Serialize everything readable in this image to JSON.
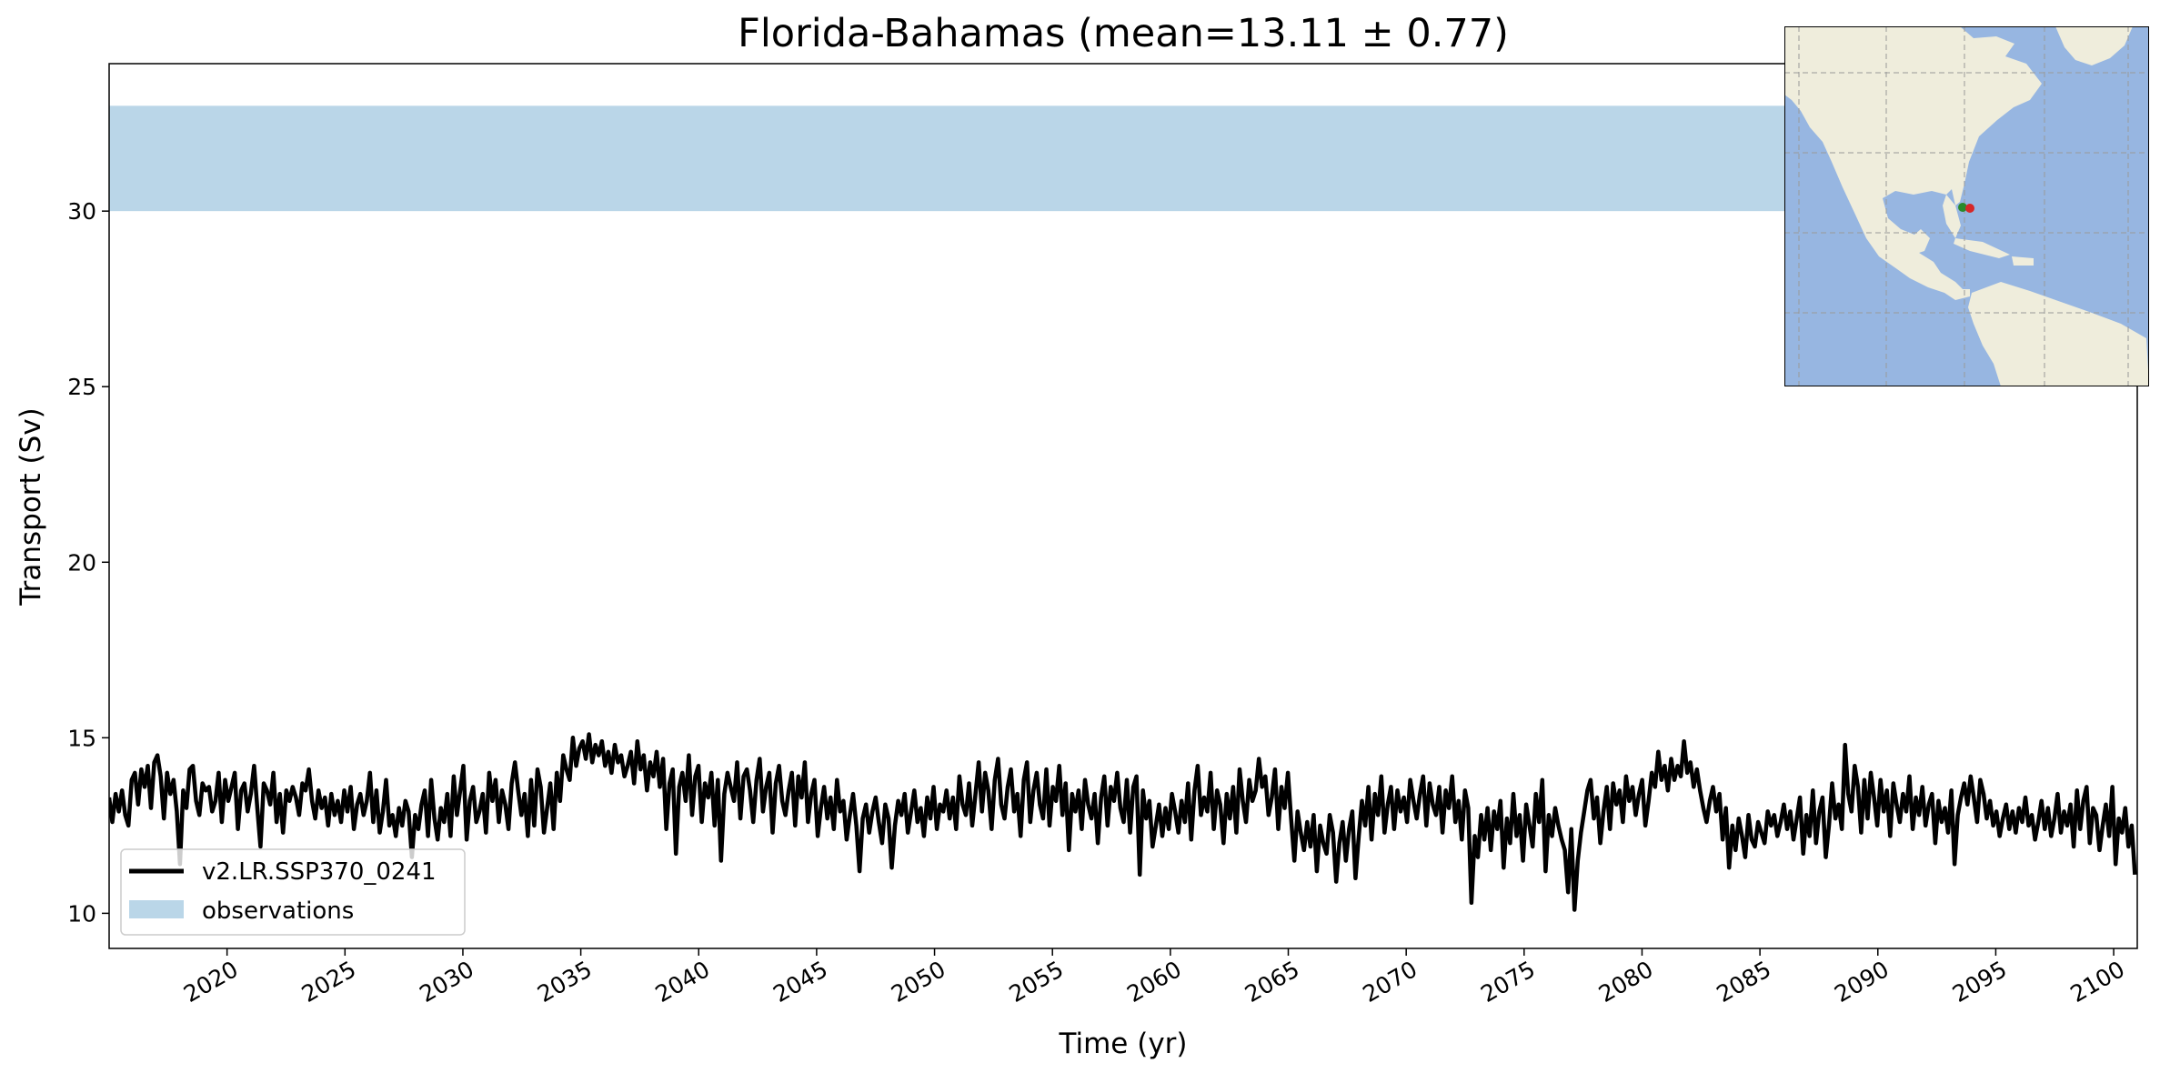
{
  "chart_data": {
    "type": "line",
    "title": "Florida-Bahamas (mean=13.11 ± 0.77)",
    "xlabel": "Time (yr)",
    "ylabel": "Transport (Sv)",
    "xlim": [
      2015,
      2101
    ],
    "ylim": [
      9,
      34.2
    ],
    "x_ticks": [
      2020,
      2025,
      2030,
      2035,
      2040,
      2045,
      2050,
      2055,
      2060,
      2065,
      2070,
      2075,
      2080,
      2085,
      2090,
      2095,
      2100
    ],
    "x_tick_labels": [
      "2020",
      "2025",
      "2030",
      "2035",
      "2040",
      "2045",
      "2050",
      "2055",
      "2060",
      "2065",
      "2070",
      "2075",
      "2080",
      "2085",
      "2090",
      "2095",
      "2100"
    ],
    "y_ticks": [
      10,
      15,
      20,
      25,
      30
    ],
    "y_tick_labels": [
      "10",
      "15",
      "20",
      "25",
      "30"
    ],
    "observation_band": {
      "name": "observations",
      "ymin": 30,
      "ymax": 33,
      "color": "#bad6e8"
    },
    "grid": false,
    "legend_position": "lower-left",
    "series": [
      {
        "name": "v2.LR.SSP370_0241",
        "color": "#000000",
        "x_start": 2015.0,
        "x_end": 2100.9,
        "values": [
          13.3,
          12.6,
          13.4,
          12.9,
          13.5,
          12.8,
          12.5,
          13.8,
          14.0,
          13.1,
          14.1,
          13.6,
          14.2,
          13.0,
          14.3,
          14.5,
          13.9,
          12.7,
          14.0,
          13.4,
          13.8,
          12.9,
          11.4,
          13.5,
          13.0,
          14.1,
          14.2,
          13.2,
          12.8,
          13.7,
          13.5,
          13.6,
          12.9,
          13.2,
          14.0,
          12.6,
          13.8,
          13.2,
          13.6,
          14.0,
          12.4,
          13.5,
          13.7,
          12.9,
          13.4,
          14.2,
          13.0,
          11.9,
          13.7,
          13.5,
          13.1,
          14.0,
          12.6,
          13.4,
          12.3,
          13.5,
          13.2,
          13.6,
          13.3,
          12.8,
          13.7,
          13.5,
          14.1,
          13.2,
          12.7,
          13.5,
          13.0,
          13.3,
          12.5,
          13.4,
          12.8,
          13.2,
          12.6,
          13.5,
          12.9,
          13.6,
          12.4,
          13.1,
          13.4,
          12.8,
          13.2,
          14.0,
          12.6,
          13.5,
          12.3,
          12.9,
          13.8,
          12.5,
          12.8,
          12.2,
          13.0,
          12.5,
          13.2,
          12.9,
          11.6,
          12.8,
          12.4,
          13.1,
          13.5,
          12.2,
          13.8,
          12.7,
          12.1,
          13.0,
          12.6,
          13.4,
          12.2,
          13.9,
          12.8,
          13.5,
          14.2,
          12.1,
          13.2,
          13.6,
          12.6,
          12.9,
          13.4,
          12.3,
          14.0,
          13.2,
          13.8,
          12.6,
          13.5,
          13.1,
          12.4,
          13.7,
          14.3,
          13.5,
          12.8,
          13.4,
          12.2,
          13.8,
          12.5,
          14.1,
          13.6,
          12.3,
          13.0,
          13.7,
          12.4,
          14.0,
          13.2,
          14.5,
          14.1,
          13.8,
          15.0,
          14.2,
          14.7,
          14.9,
          14.4,
          15.1,
          14.3,
          14.8,
          14.5,
          14.9,
          14.2,
          14.6,
          14.0,
          14.8,
          14.3,
          14.5,
          13.9,
          14.2,
          14.6,
          13.7,
          14.9,
          14.1,
          14.5,
          13.5,
          14.3,
          13.9,
          14.6,
          13.6,
          14.4,
          12.4,
          13.7,
          14.1,
          11.7,
          13.6,
          14.0,
          13.2,
          14.5,
          12.8,
          13.9,
          14.2,
          12.6,
          13.7,
          13.3,
          14.0,
          12.5,
          13.8,
          11.5,
          13.4,
          14.0,
          13.6,
          13.2,
          14.3,
          12.7,
          13.9,
          14.1,
          13.5,
          12.6,
          13.8,
          14.4,
          12.9,
          13.6,
          14.0,
          12.3,
          13.7,
          14.2,
          13.2,
          12.8,
          13.5,
          14.0,
          12.5,
          13.9,
          13.3,
          14.3,
          12.6,
          13.4,
          13.8,
          12.2,
          13.0,
          13.6,
          12.7,
          13.3,
          12.4,
          13.8,
          12.9,
          13.2,
          12.1,
          12.8,
          13.4,
          12.5,
          11.2,
          12.7,
          13.1,
          12.3,
          12.9,
          13.3,
          12.6,
          12.0,
          13.1,
          12.7,
          11.3,
          12.5,
          13.2,
          12.8,
          13.4,
          12.3,
          12.9,
          13.5,
          12.6,
          13.0,
          12.2,
          13.3,
          12.7,
          13.6,
          12.4,
          13.1,
          12.9,
          13.5,
          12.7,
          13.3,
          12.4,
          13.9,
          13.1,
          12.8,
          13.7,
          12.5,
          13.4,
          14.3,
          12.9,
          14.0,
          13.5,
          12.4,
          13.8,
          14.4,
          13.1,
          12.7,
          13.6,
          14.1,
          12.9,
          13.4,
          12.2,
          13.8,
          14.3,
          12.6,
          13.5,
          14.0,
          13.1,
          12.7,
          14.1,
          12.5,
          13.6,
          13.2,
          14.2,
          12.8,
          13.7,
          11.8,
          13.4,
          12.9,
          13.5,
          12.4,
          13.8,
          13.1,
          12.7,
          13.4,
          12.0,
          13.3,
          13.9,
          12.5,
          13.6,
          13.2,
          14.0,
          13.0,
          12.6,
          13.8,
          12.3,
          13.6,
          13.9,
          11.1,
          13.5,
          12.7,
          13.2,
          11.9,
          12.5,
          13.1,
          12.2,
          13.0,
          12.4,
          13.4,
          12.9,
          12.3,
          13.2,
          12.6,
          13.7,
          12.1,
          13.5,
          14.2,
          12.8,
          13.3,
          12.9,
          14.0,
          12.4,
          13.5,
          13.1,
          12.0,
          13.4,
          12.7,
          13.6,
          12.3,
          14.1,
          13.2,
          12.6,
          13.8,
          13.2,
          13.5,
          14.4,
          13.6,
          13.9,
          12.8,
          13.3,
          14.1,
          12.4,
          13.6,
          13.0,
          14.0,
          12.7,
          11.5,
          12.9,
          12.3,
          11.8,
          12.6,
          11.9,
          12.8,
          11.2,
          12.5,
          12.0,
          11.7,
          12.8,
          12.3,
          10.9,
          12.0,
          12.6,
          11.5,
          12.4,
          12.9,
          11.0,
          12.2,
          13.2,
          12.5,
          13.6,
          12.1,
          13.4,
          12.8,
          13.9,
          12.3,
          13.1,
          13.6,
          12.4,
          13.5,
          12.9,
          13.3,
          12.6,
          13.8,
          13.2,
          12.7,
          13.4,
          13.9,
          12.5,
          13.7,
          13.1,
          12.8,
          13.6,
          12.3,
          13.5,
          13.0,
          13.9,
          12.6,
          13.2,
          12.1,
          13.5,
          13.0,
          10.3,
          12.2,
          11.6,
          12.8,
          12.1,
          13.0,
          11.8,
          12.9,
          12.4,
          13.2,
          11.3,
          12.7,
          12.0,
          13.4,
          12.2,
          12.8,
          11.5,
          13.1,
          12.5,
          11.9,
          13.4,
          12.6,
          13.8,
          11.2,
          12.8,
          12.2,
          13.0,
          12.5,
          12.1,
          11.8,
          10.6,
          12.4,
          10.1,
          11.5,
          12.3,
          12.9,
          13.5,
          13.8,
          12.7,
          13.3,
          12.0,
          12.9,
          13.6,
          12.4,
          13.7,
          13.1,
          13.5,
          12.6,
          13.9,
          13.2,
          13.6,
          12.8,
          13.4,
          13.8,
          12.5,
          13.2,
          14.0,
          13.6,
          14.6,
          13.8,
          14.2,
          13.5,
          14.4,
          13.8,
          14.2,
          13.9,
          14.9,
          14.0,
          14.3,
          13.6,
          14.1,
          13.5,
          13.0,
          12.6,
          13.2,
          13.6,
          12.9,
          13.4,
          12.1,
          13.0,
          11.3,
          12.5,
          11.8,
          12.7,
          12.2,
          11.6,
          12.8,
          12.1,
          11.9,
          12.6,
          12.3,
          12.0,
          12.9,
          12.5,
          12.8,
          12.2,
          12.6,
          13.1,
          12.4,
          12.9,
          12.1,
          12.7,
          13.3,
          11.7,
          12.8,
          12.2,
          13.5,
          12.0,
          12.9,
          13.3,
          11.6,
          12.5,
          13.7,
          12.7,
          13.1,
          12.4,
          14.8,
          13.4,
          12.9,
          14.2,
          13.6,
          12.3,
          13.8,
          12.7,
          14.0,
          13.3,
          12.5,
          13.8,
          12.9,
          13.5,
          12.2,
          13.7,
          13.1,
          12.6,
          13.4,
          12.9,
          13.9,
          12.4,
          13.3,
          12.8,
          13.6,
          12.5,
          13.1,
          13.4,
          12.0,
          13.2,
          12.6,
          13.0,
          12.3,
          13.5,
          11.4,
          12.8,
          13.3,
          13.7,
          13.1,
          13.9,
          13.3,
          12.6,
          13.8,
          13.4,
          12.7,
          13.2,
          12.5,
          12.9,
          12.2,
          12.7,
          13.1,
          12.4,
          12.9,
          12.3,
          13.0,
          12.6,
          13.3,
          12.5,
          12.8,
          12.1,
          12.6,
          13.2,
          12.4,
          13.0,
          12.2,
          12.7,
          13.4,
          12.3,
          12.9,
          12.5,
          13.1,
          11.9,
          13.5,
          12.4,
          13.2,
          13.6,
          12.0,
          13.0,
          12.8,
          11.8,
          12.5,
          13.1,
          12.2,
          13.6,
          11.4,
          12.7,
          12.3,
          13.0,
          11.9,
          12.5,
          11.1
        ]
      }
    ]
  },
  "inset_map": {
    "markers": [
      {
        "name": "section-start",
        "color": "#2a8a2a"
      },
      {
        "name": "section-end",
        "color": "#d62728"
      }
    ],
    "land_color": "#efeddc",
    "ocean_color": "#97b6e1"
  }
}
